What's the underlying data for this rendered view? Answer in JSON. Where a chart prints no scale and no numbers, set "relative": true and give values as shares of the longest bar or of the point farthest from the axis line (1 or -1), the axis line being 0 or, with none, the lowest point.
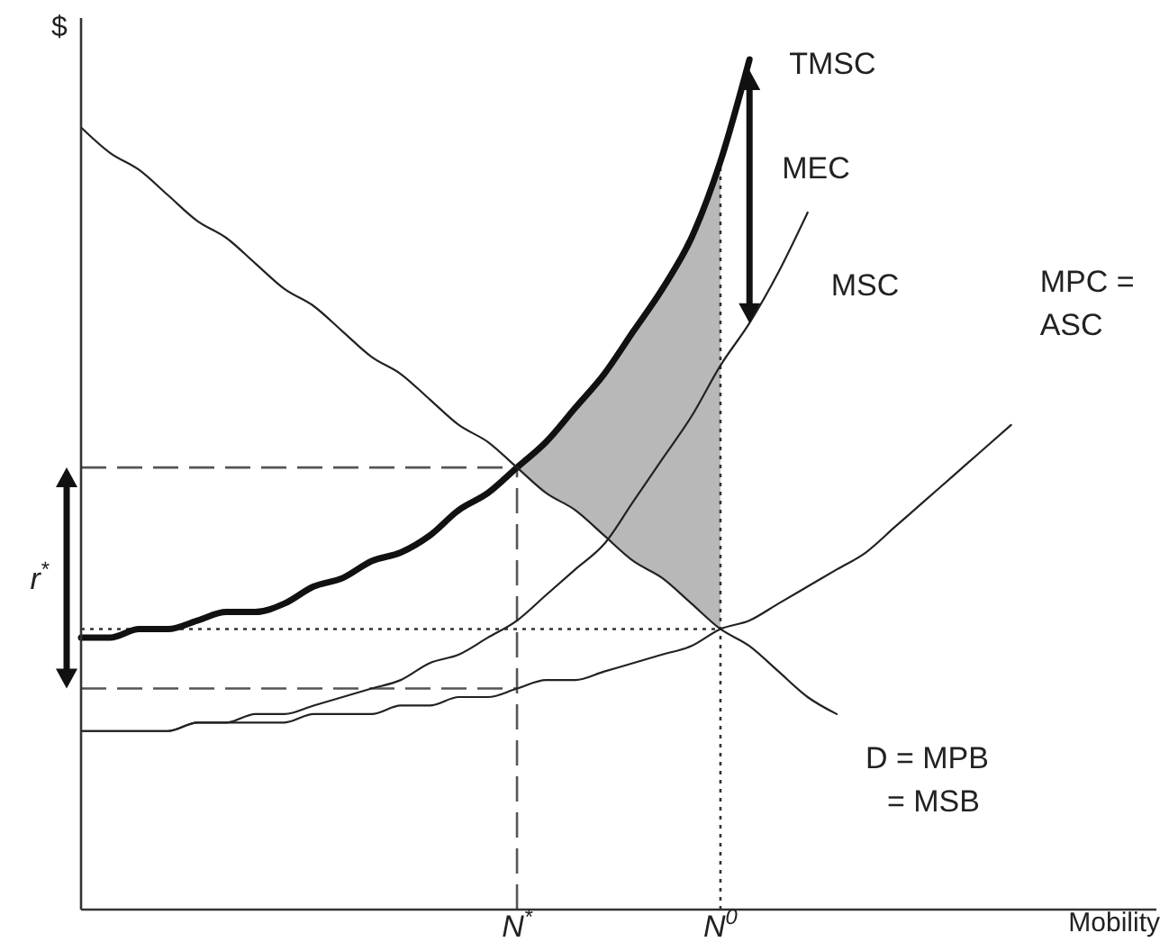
{
  "chart_data": {
    "type": "line",
    "relative": true,
    "ylabel": "$",
    "xlabel": "Mobility",
    "categories": [
      null,
      null,
      null,
      null,
      null,
      null,
      null,
      null,
      null,
      null,
      null,
      null,
      null,
      null,
      null,
      "N$^{*}$",
      null,
      null,
      null,
      null,
      null,
      null,
      "N$^{0}$",
      null,
      null,
      null,
      null,
      null,
      null,
      null,
      null,
      null,
      null,
      null,
      null,
      null,
      null,
      null
    ],
    "series": [
      {
        "name": "TMSC",
        "color": "#111111",
        "values": [
          0.32,
          0.32,
          0.33,
          0.33,
          0.34,
          0.35,
          0.35,
          0.36,
          0.38,
          0.39,
          0.41,
          0.42,
          0.44,
          0.47,
          0.49,
          0.52,
          0.55,
          0.59,
          0.63,
          0.68,
          0.73,
          0.79,
          0.88,
          1.0,
          null,
          null,
          null,
          null,
          null,
          null,
          null,
          null,
          null,
          null,
          null,
          null,
          null,
          null
        ]
      },
      {
        "name": "MSC",
        "color": "#222222",
        "values": [
          0.21,
          0.21,
          0.21,
          0.21,
          0.22,
          0.22,
          0.23,
          0.23,
          0.24,
          0.25,
          0.26,
          0.27,
          0.29,
          0.3,
          0.32,
          0.34,
          0.37,
          0.4,
          0.43,
          0.48,
          0.53,
          0.58,
          0.64,
          0.69,
          0.75,
          0.82,
          null,
          null,
          null,
          null,
          null,
          null,
          null,
          null,
          null,
          null,
          null,
          null
        ]
      },
      {
        "name": "MPC = ASC",
        "color": "#222222",
        "values": [
          0.21,
          0.21,
          0.21,
          0.21,
          0.22,
          0.22,
          0.22,
          0.22,
          0.23,
          0.23,
          0.23,
          0.24,
          0.24,
          0.25,
          0.25,
          0.26,
          0.27,
          0.27,
          0.28,
          0.29,
          0.3,
          0.31,
          0.33,
          0.34,
          0.36,
          0.38,
          0.4,
          0.42,
          0.45,
          0.48,
          0.51,
          0.54,
          0.57,
          null,
          null,
          null,
          null,
          null
        ]
      },
      {
        "name": "D = MPB = MSB",
        "color": "#222222",
        "values": [
          0.92,
          0.89,
          0.87,
          0.84,
          0.81,
          0.79,
          0.76,
          0.73,
          0.71,
          0.68,
          0.65,
          0.63,
          0.6,
          0.57,
          0.55,
          0.52,
          0.49,
          0.47,
          0.44,
          0.41,
          0.39,
          0.36,
          0.33,
          0.31,
          0.28,
          0.25,
          0.23,
          null,
          null,
          null,
          null,
          null,
          null,
          null,
          null,
          null,
          null,
          null
        ],
        "lower": [
          null,
          null,
          null,
          null,
          null,
          null,
          null,
          null,
          null,
          null,
          null,
          null,
          null,
          null,
          null,
          0.52,
          0.49,
          0.47,
          0.44,
          0.41,
          0.39,
          0.36,
          0.33,
          null,
          null,
          null,
          null,
          null,
          null,
          null,
          null,
          null,
          null,
          null,
          null,
          null,
          null,
          null
        ],
        "upper": [
          null,
          null,
          null,
          null,
          null,
          null,
          null,
          null,
          null,
          null,
          null,
          null,
          null,
          null,
          null,
          0.52,
          0.55,
          0.59,
          0.63,
          0.68,
          0.73,
          0.79,
          0.88,
          null,
          null,
          null,
          null,
          null,
          null,
          null,
          null,
          null,
          null,
          null,
          null,
          null,
          null,
          null
        ]
      }
    ],
    "ref_lines": [
      {
        "axis": "x",
        "value": "N$^{*}$",
        "line_style": "dashed",
        "color": "#555555"
      },
      {
        "axis": "y",
        "value": 0.52,
        "line_style": "dashed",
        "color": "#555555"
      },
      {
        "axis": "y",
        "value": 0.26,
        "line_style": "dashed",
        "color": "#555555"
      },
      {
        "axis": "x",
        "value": "N$^{0}$",
        "line_style": "dotted",
        "color": "#333333"
      },
      {
        "axis": "y",
        "value": 0.33,
        "line_style": "dotted",
        "color": "#333333"
      }
    ],
    "annotations": [
      "MEC",
      "r$^{*}$"
    ]
  }
}
